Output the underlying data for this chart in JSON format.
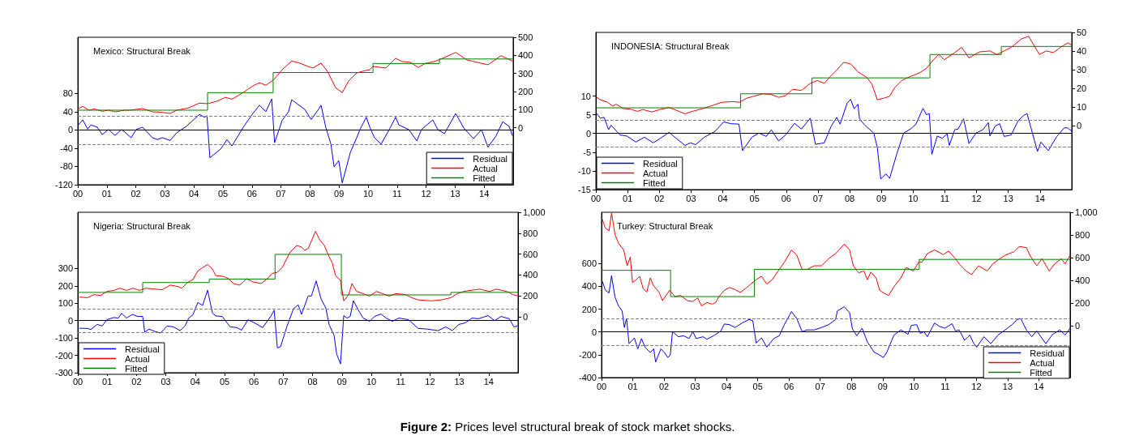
{
  "chart_data": [
    {
      "type": "line",
      "title": "Mexico: Structural Break",
      "legend": "bottom right",
      "marker": "none",
      "xlim": [
        0,
        15
      ],
      "xticks": [
        {
          "value": 0,
          "label": "00"
        },
        {
          "value": 1,
          "label": "01"
        },
        {
          "value": 2,
          "label": "02"
        },
        {
          "value": 3,
          "label": "03"
        },
        {
          "value": 4,
          "label": "04"
        },
        {
          "value": 5,
          "label": "05"
        },
        {
          "value": 6,
          "label": "06"
        },
        {
          "value": 7,
          "label": "07"
        },
        {
          "value": 8,
          "label": "08"
        },
        {
          "value": 9,
          "label": "09"
        },
        10,
        11,
        12,
        13,
        14
      ],
      "ylim": [
        -120,
        203
      ],
      "yticks": [
        -120,
        -80,
        -40,
        0,
        40,
        80
      ],
      "y2lim": [
        -315,
        500
      ],
      "y2ticks": [
        0,
        100,
        200,
        300,
        400,
        500
      ],
      "ref_lines": [
        {
          "axis": "y",
          "value": 0,
          "color": "#000000",
          "line_style": "solid"
        },
        {
          "axis": "y",
          "value": 31,
          "color": "#808080",
          "line_style": "dashed"
        },
        {
          "axis": "y",
          "value": -31,
          "color": "#808080",
          "line_style": "dashed"
        }
      ],
      "series": [
        {
          "name": "Residual",
          "color": "#0000ff",
          "x": [
            0.02,
            0.17,
            0.34,
            0.45,
            0.67,
            0.84,
            1.06,
            1.28,
            1.51,
            1.84,
            2.01,
            2.23,
            2.57,
            2.74,
            2.91,
            3.18,
            3.41,
            3.74,
            4.19,
            4.36,
            4.45,
            4.55,
            4.92,
            5.14,
            5.31,
            5.53,
            5.7,
            6.03,
            6.26,
            6.48,
            6.68,
            6.78,
            7.04,
            7.26,
            7.37,
            7.82,
            8.04,
            8.27,
            8.38,
            8.55,
            8.72,
            8.83,
            8.99,
            9.11,
            9.39,
            9.61,
            9.72,
            9.94,
            10.06,
            10.22,
            10.45,
            10.73,
            10.95,
            11.06,
            11.4,
            11.68,
            11.84,
            12.23,
            12.4,
            12.63,
            13.02,
            13.3,
            13.63,
            13.91,
            14.13,
            14.41,
            14.64,
            14.86,
            14.97
          ],
          "values": [
            11,
            22,
            2,
            11,
            6,
            -10,
            1,
            -12,
            1,
            -17,
            1,
            6,
            -17,
            -21,
            -17,
            -23,
            -6,
            8,
            34,
            28,
            31,
            -61,
            -42,
            -21,
            -35,
            -12,
            6,
            36,
            54,
            40,
            68,
            -28,
            21,
            40,
            66,
            45,
            23,
            43,
            54,
            4,
            -31,
            -81,
            -67,
            -116,
            -49,
            -17,
            1,
            28,
            6,
            -17,
            -31,
            1,
            28,
            11,
            1,
            -24,
            1,
            22,
            1,
            -8,
            36,
            4,
            -19,
            1,
            -38,
            -13,
            18,
            8,
            -12
          ]
        },
        {
          "name": "Actual",
          "color": "#ff0000",
          "axis": "y2",
          "x": [
            0.02,
            0.17,
            0.39,
            0.56,
            0.84,
            1.06,
            1.28,
            1.62,
            1.79,
            2.23,
            2.57,
            2.85,
            3.18,
            3.41,
            3.8,
            4.19,
            4.47,
            4.8,
            5.08,
            5.31,
            5.7,
            6.03,
            6.26,
            6.48,
            6.76,
            7.04,
            7.37,
            7.65,
            7.93,
            8.1,
            8.38,
            8.6,
            8.88,
            9.11,
            9.33,
            9.61,
            9.89,
            10.06,
            10.17,
            10.61,
            10.95,
            11.17,
            11.45,
            11.73,
            11.96,
            12.29,
            12.57,
            13.02,
            13.41,
            13.74,
            14.13,
            14.58,
            14.97
          ],
          "values": [
            106,
            118,
            97,
            104,
            91,
            97,
            88,
            97,
            97,
            106,
            88,
            86,
            79,
            97,
            109,
            136,
            133,
            147,
            168,
            158,
            195,
            231,
            249,
            235,
            267,
            321,
            369,
            357,
            339,
            330,
            357,
            312,
            222,
            194,
            258,
            303,
            315,
            321,
            339,
            330,
            384,
            366,
            362,
            333,
            355,
            366,
            384,
            416,
            375,
            362,
            348,
            398,
            369
          ]
        },
        {
          "name": "Fitted",
          "color": "#008000",
          "axis": "y2",
          "x": [
            0,
            4.47,
            4.47,
            6.73,
            6.73,
            10.17,
            10.17,
            12.46,
            12.46,
            15
          ],
          "values": [
            97,
            97,
            194,
            194,
            305,
            305,
            355,
            355,
            380,
            380
          ]
        }
      ]
    },
    {
      "type": "line",
      "title": "INDONESIA: Structural Break",
      "legend": "bottom left",
      "marker": "none",
      "xlim": [
        0,
        15
      ],
      "xticks": [
        {
          "value": 0,
          "label": "00"
        },
        {
          "value": 1,
          "label": "01"
        },
        {
          "value": 2,
          "label": "02"
        },
        {
          "value": 3,
          "label": "03"
        },
        {
          "value": 4,
          "label": "04"
        },
        {
          "value": 5,
          "label": "05"
        },
        {
          "value": 6,
          "label": "06"
        },
        {
          "value": 7,
          "label": "07"
        },
        {
          "value": 8,
          "label": "08"
        },
        {
          "value": 9,
          "label": "09"
        },
        10,
        11,
        12,
        13,
        14
      ],
      "ylim": [
        -15,
        27
      ],
      "yticks": [
        -15,
        -10,
        -5,
        0,
        5,
        10
      ],
      "y2lim": [
        -34,
        50
      ],
      "y2ticks": [
        0,
        10,
        20,
        30,
        40,
        50
      ],
      "ref_lines": [
        {
          "axis": "y",
          "value": 0,
          "color": "#000000",
          "line_style": "solid"
        },
        {
          "axis": "y",
          "value": 3.5,
          "color": "#808080",
          "line_style": "dashed"
        },
        {
          "axis": "y",
          "value": -3.5,
          "color": "#808080",
          "line_style": "dashed"
        }
      ],
      "series": [
        {
          "name": "Residual",
          "color": "#0000ff",
          "x": [
            0.03,
            0.14,
            0.26,
            0.4,
            0.48,
            0.76,
            0.98,
            1.26,
            1.53,
            1.81,
            2.03,
            2.31,
            2.53,
            2.81,
            2.98,
            3.14,
            3.42,
            3.76,
            4.03,
            4.26,
            4.51,
            4.62,
            4.92,
            5.14,
            5.37,
            5.53,
            5.76,
            5.98,
            6.26,
            6.48,
            6.76,
            6.92,
            7.2,
            7.42,
            7.59,
            7.7,
            7.92,
            8.03,
            8.14,
            8.26,
            8.31,
            8.48,
            8.76,
            8.87,
            8.98,
            9.14,
            9.26,
            9.48,
            9.7,
            9.92,
            10.09,
            10.31,
            10.42,
            10.51,
            10.59,
            10.76,
            10.92,
            11.07,
            11.14,
            11.31,
            11.42,
            11.59,
            11.76,
            11.98,
            12.2,
            12.37,
            12.42,
            12.59,
            12.73,
            12.87,
            13.09,
            13.31,
            13.48,
            13.59,
            13.92,
            14.03,
            14.26,
            14.53,
            14.76,
            14.87,
            15
          ],
          "values": [
            5.3,
            4.1,
            4.3,
            1,
            2.2,
            -0.4,
            -0.7,
            -2.3,
            -1,
            -2.5,
            -1.3,
            0.3,
            -1.3,
            -3.2,
            -2.5,
            -3,
            -1,
            0.6,
            3.1,
            2.6,
            2.5,
            -4.6,
            -1,
            0.1,
            -0.8,
            1,
            -2,
            -0.4,
            2.7,
            1.2,
            4.1,
            -2.9,
            -2.5,
            2,
            4.3,
            2.5,
            8.1,
            9.1,
            6.6,
            7.8,
            3.9,
            2.2,
            0.1,
            -3.7,
            -12.2,
            -10.8,
            -12,
            -5.6,
            0.1,
            1.2,
            2.5,
            6.7,
            5,
            5.3,
            -5.6,
            -0.7,
            -1.3,
            -0.1,
            -3.2,
            1,
            1.2,
            3.9,
            -2.7,
            0.1,
            1,
            2.9,
            -0.7,
            2,
            2.6,
            -0.8,
            -0.4,
            3.4,
            4.8,
            5.3,
            -4.8,
            -2.3,
            -4.6,
            -0.8,
            1.5,
            1.5,
            0.6
          ]
        },
        {
          "name": "Actual",
          "color": "#ff0000",
          "axis": "y2",
          "x": [
            0.03,
            0.14,
            0.37,
            0.53,
            0.64,
            0.87,
            1.09,
            1.31,
            1.48,
            1.76,
            2.03,
            2.31,
            2.53,
            2.81,
            2.98,
            3.31,
            3.64,
            3.98,
            4.31,
            4.53,
            4.76,
            4.98,
            5.26,
            5.53,
            5.76,
            5.98,
            6.2,
            6.48,
            6.76,
            6.98,
            7.2,
            7.37,
            7.59,
            7.81,
            8.03,
            8.26,
            8.53,
            8.7,
            8.87,
            9.09,
            9.26,
            9.42,
            9.64,
            9.92,
            10.2,
            10.42,
            10.64,
            10.81,
            10.98,
            11.31,
            11.53,
            11.76,
            12.09,
            12.42,
            12.64,
            12.87,
            13.09,
            13.42,
            13.64,
            13.98,
            14.2,
            14.42,
            14.64,
            14.87,
            15
          ],
          "values": [
            15.3,
            14,
            12.7,
            10.6,
            11.6,
            9.3,
            9,
            7.8,
            8.8,
            7.5,
            8.8,
            9.9,
            8.4,
            6.5,
            7.5,
            9,
            10.8,
            12.7,
            13,
            12.7,
            14.9,
            15.9,
            17.2,
            16.8,
            15.3,
            16.2,
            19.6,
            19,
            22.8,
            24.3,
            22.8,
            26.1,
            29.9,
            34,
            33.2,
            28.9,
            26.1,
            22.4,
            14,
            14.9,
            15.9,
            20.5,
            24.3,
            26.5,
            28.4,
            30.8,
            35.4,
            38.2,
            35.4,
            39.2,
            42,
            36.4,
            39.6,
            40.1,
            38.2,
            40.1,
            42,
            46.6,
            47.9,
            38.2,
            40.1,
            39.2,
            42,
            44.4,
            43.3
          ]
        },
        {
          "name": "Fitted",
          "color": "#008000",
          "axis": "y2",
          "x": [
            0,
            4.56,
            4.56,
            6.81,
            6.81,
            10.53,
            10.53,
            12.78,
            12.78,
            15
          ],
          "values": [
            9.7,
            9.7,
            17.2,
            17.2,
            25.7,
            25.7,
            38.2,
            38.2,
            42.5,
            42.5
          ]
        }
      ]
    },
    {
      "type": "line",
      "title": "Nigeria: Structural Break",
      "legend": "bottom left",
      "marker": "none",
      "xlim": [
        0,
        15
      ],
      "xticks": [
        {
          "value": 0,
          "label": "00"
        },
        {
          "value": 1,
          "label": "01"
        },
        {
          "value": 2,
          "label": "02"
        },
        {
          "value": 3,
          "label": "03"
        },
        {
          "value": 4,
          "label": "04"
        },
        {
          "value": 5,
          "label": "05"
        },
        {
          "value": 6,
          "label": "06"
        },
        {
          "value": 7,
          "label": "07"
        },
        {
          "value": 8,
          "label": "08"
        },
        {
          "value": 9,
          "label": "09"
        },
        10,
        11,
        12,
        13,
        14
      ],
      "ylim": [
        -300,
        624
      ],
      "yticks": [
        -300,
        -200,
        -100,
        0,
        100,
        200,
        300
      ],
      "y2lim": [
        -536,
        1000
      ],
      "y2ticks": [
        0,
        200,
        400,
        600,
        800,
        {
          "value": 1000,
          "label": "1,000"
        }
      ],
      "ref_lines": [
        {
          "axis": "y",
          "value": 0,
          "color": "#000000",
          "line_style": "solid"
        },
        {
          "axis": "y",
          "value": 66,
          "color": "#808080",
          "line_style": "dashed"
        },
        {
          "axis": "y",
          "value": -66,
          "color": "#808080",
          "line_style": "dashed"
        }
      ],
      "series": [
        {
          "name": "Residual",
          "color": "#0000ff",
          "x": [
            0.06,
            0.33,
            0.44,
            0.66,
            0.83,
            0.99,
            1.22,
            1.38,
            1.49,
            1.66,
            1.86,
            2.04,
            2.21,
            2.28,
            2.43,
            2.65,
            2.82,
            3.04,
            3.26,
            3.48,
            3.65,
            3.78,
            3.92,
            4.09,
            4.25,
            4.42,
            4.59,
            4.7,
            4.92,
            5.19,
            5.41,
            5.58,
            5.8,
            6.02,
            6.3,
            6.57,
            6.69,
            6.8,
            6.91,
            7.13,
            7.35,
            7.51,
            7.62,
            7.85,
            7.96,
            8.12,
            8.29,
            8.45,
            8.56,
            8.73,
            8.82,
            8.95,
            9.06,
            9.17,
            9.28,
            9.39,
            9.56,
            9.72,
            9.94,
            10.11,
            10.33,
            10.5,
            10.72,
            10.94,
            11.27,
            11.6,
            11.93,
            12.27,
            12.54,
            12.76,
            12.98,
            13.2,
            13.43,
            13.65,
            13.98,
            14.2,
            14.42,
            14.7,
            14.86,
            14.97
          ],
          "values": [
            -44,
            -45,
            -51,
            -22,
            -31,
            5,
            18,
            15,
            42,
            15,
            36,
            24,
            24,
            -67,
            -49,
            -64,
            -71,
            -31,
            -36,
            -58,
            -31,
            15,
            33,
            105,
            87,
            175,
            42,
            27,
            24,
            -36,
            -40,
            -55,
            5,
            -13,
            -40,
            24,
            60,
            -158,
            -149,
            -31,
            69,
            91,
            36,
            142,
            142,
            229,
            124,
            73,
            -22,
            -85,
            -193,
            -249,
            29,
            15,
            24,
            115,
            60,
            15,
            -4,
            24,
            38,
            15,
            -4,
            15,
            5,
            -45,
            -49,
            -58,
            -36,
            -58,
            -22,
            -13,
            15,
            11,
            29,
            0,
            24,
            11,
            -36,
            -31
          ]
        },
        {
          "name": "Actual",
          "color": "#ff0000",
          "axis": "y2",
          "x": [
            0.06,
            0.33,
            0.55,
            0.77,
            0.99,
            1.22,
            1.44,
            1.66,
            1.88,
            2.1,
            2.32,
            2.65,
            2.87,
            3.15,
            3.43,
            3.54,
            3.76,
            3.92,
            4.09,
            4.25,
            4.42,
            4.59,
            4.7,
            4.97,
            5.14,
            5.3,
            5.52,
            5.75,
            5.97,
            6.24,
            6.46,
            6.62,
            6.79,
            6.96,
            7.24,
            7.46,
            7.62,
            7.73,
            7.85,
            7.96,
            8.1,
            8.23,
            8.4,
            8.56,
            8.67,
            8.78,
            8.95,
            9.06,
            9.23,
            9.34,
            9.5,
            9.67,
            9.94,
            10.17,
            10.39,
            10.61,
            10.83,
            11.16,
            11.38,
            11.6,
            12.04,
            12.38,
            12.71,
            12.93,
            13.15,
            13.37,
            13.7,
            14.03,
            14.25,
            14.48,
            14.7,
            14.81,
            14.97
          ],
          "values": [
            188,
            182,
            212,
            203,
            242,
            252,
            273,
            252,
            273,
            252,
            273,
            264,
            258,
            303,
            288,
            273,
            333,
            355,
            439,
            470,
            500,
            455,
            394,
            385,
            364,
            318,
            303,
            364,
            333,
            318,
            364,
            415,
            424,
            470,
            621,
            682,
            667,
            636,
            652,
            727,
            818,
            742,
            682,
            576,
            515,
            394,
            348,
            152,
            212,
            318,
            242,
            227,
            197,
            242,
            221,
            197,
            221,
            212,
            182,
            161,
            152,
            161,
            182,
            221,
            242,
            252,
            264,
            242,
            264,
            252,
            233,
            212,
            203
          ]
        },
        {
          "name": "Fitted",
          "color": "#008000",
          "axis": "y2",
          "x": [
            0,
            2.21,
            2.21,
            4.48,
            4.48,
            6.72,
            6.72,
            8.98,
            8.98,
            12.71,
            12.71,
            15
          ],
          "values": [
            233,
            233,
            327,
            327,
            361,
            361,
            597,
            597,
            209,
            209,
            233,
            233
          ]
        }
      ]
    },
    {
      "type": "line",
      "title": "Turkey: Structural Break",
      "legend": "bottom right",
      "marker": "none",
      "annotations": [
        "Figure 2: Prices level structural break of stock market shocks."
      ],
      "xlim": [
        0,
        15
      ],
      "xticks": [
        {
          "value": 0,
          "label": "00"
        },
        {
          "value": 1,
          "label": "01"
        },
        {
          "value": 2,
          "label": "02"
        },
        {
          "value": 3,
          "label": "03"
        },
        {
          "value": 4,
          "label": "04"
        },
        {
          "value": 5,
          "label": "05"
        },
        {
          "value": 6,
          "label": "06"
        },
        {
          "value": 7,
          "label": "07"
        },
        {
          "value": 8,
          "label": "08"
        },
        {
          "value": 9,
          "label": "09"
        },
        10,
        11,
        12,
        13,
        14
      ],
      "ylim": [
        -400,
        1050
      ],
      "yticks": [
        -400,
        -200,
        0,
        200,
        400,
        600
      ],
      "y2lim": [
        -455,
        1000
      ],
      "y2ticks": [
        0,
        200,
        400,
        600,
        800,
        {
          "value": 1000,
          "label": "1,000"
        }
      ],
      "ref_lines": [
        {
          "axis": "y",
          "value": 0,
          "color": "#000000",
          "line_style": "solid"
        },
        {
          "axis": "y",
          "value": 118,
          "color": "#808080",
          "line_style": "dashed"
        },
        {
          "axis": "y",
          "value": -118,
          "color": "#808080",
          "line_style": "dashed"
        }
      ],
      "series": [
        {
          "name": "Residual",
          "color": "#0000ff",
          "x": [
            0.03,
            0.12,
            0.24,
            0.32,
            0.43,
            0.54,
            0.66,
            0.73,
            0.8,
            0.88,
            1.05,
            1.16,
            1.28,
            1.39,
            1.56,
            1.67,
            1.73,
            1.9,
            2.01,
            2.12,
            2.2,
            2.27,
            2.46,
            2.63,
            2.8,
            2.92,
            3.03,
            3.25,
            3.37,
            3.59,
            3.82,
            3.93,
            4.1,
            4.27,
            4.5,
            4.72,
            4.84,
            4.95,
            5.12,
            5.29,
            5.51,
            5.69,
            5.85,
            6.08,
            6.25,
            6.42,
            6.59,
            6.81,
            7.04,
            7.27,
            7.49,
            7.55,
            7.77,
            7.94,
            8.03,
            8.17,
            8.34,
            8.51,
            8.73,
            8.85,
            9.02,
            9.13,
            9.36,
            9.58,
            9.81,
            9.92,
            10.09,
            10.2,
            10.32,
            10.43,
            10.66,
            10.82,
            10.99,
            11.22,
            11.33,
            11.45,
            11.62,
            11.79,
            11.9,
            12.01,
            12.24,
            12.46,
            12.69,
            12.92,
            13.14,
            13.31,
            13.42,
            13.6,
            13.77,
            13.93,
            14.22,
            14.44,
            14.67,
            14.84,
            15
          ],
          "values": [
            442,
            367,
            342,
            494,
            306,
            230,
            185,
            39,
            118,
            -103,
            -52,
            -148,
            -58,
            -133,
            -179,
            -148,
            -264,
            -148,
            -179,
            -224,
            -203,
            3,
            -42,
            -33,
            -58,
            3,
            -58,
            -42,
            -64,
            -33,
            9,
            70,
            64,
            39,
            79,
            109,
            100,
            -97,
            -52,
            -133,
            -58,
            -33,
            64,
            179,
            118,
            3,
            18,
            18,
            39,
            64,
            109,
            185,
            221,
            170,
            27,
            -33,
            33,
            -88,
            -179,
            -194,
            -224,
            -179,
            -27,
            18,
            -21,
            58,
            64,
            -12,
            3,
            -42,
            79,
            48,
            33,
            73,
            9,
            18,
            -73,
            -27,
            -94,
            -133,
            -42,
            -103,
            -27,
            18,
            64,
            109,
            118,
            18,
            -42,
            9,
            -103,
            -21,
            18,
            -27,
            33
          ]
        },
        {
          "name": "Actual",
          "color": "#ff0000",
          "axis": "y2",
          "x": [
            0.03,
            0.12,
            0.24,
            0.32,
            0.43,
            0.54,
            0.71,
            0.82,
            0.92,
            0.99,
            1.11,
            1.22,
            1.33,
            1.45,
            1.56,
            1.67,
            1.84,
            1.95,
            2.18,
            2.35,
            2.52,
            2.75,
            2.92,
            3.08,
            3.2,
            3.37,
            3.54,
            3.65,
            3.76,
            3.93,
            4.1,
            4.27,
            4.44,
            4.61,
            4.78,
            4.95,
            5.12,
            5.29,
            5.46,
            5.69,
            5.85,
            6.08,
            6.25,
            6.42,
            6.59,
            6.81,
            7.04,
            7.27,
            7.49,
            7.6,
            7.77,
            7.94,
            8.06,
            8.23,
            8.4,
            8.51,
            8.62,
            8.79,
            8.9,
            9.07,
            9.19,
            9.36,
            9.58,
            9.75,
            9.98,
            10.15,
            10.26,
            10.43,
            10.66,
            10.94,
            11.11,
            11.33,
            11.45,
            11.67,
            11.84,
            12.07,
            12.35,
            12.52,
            12.75,
            12.92,
            13.2,
            13.37,
            13.6,
            13.71,
            13.93,
            14.1,
            14.33,
            14.5,
            14.72,
            14.84,
            15
          ],
          "values": [
            935,
            862,
            837,
            991,
            806,
            729,
            668,
            529,
            606,
            382,
            406,
            437,
            329,
            298,
            422,
            351,
            298,
            222,
            314,
            258,
            268,
            222,
            215,
            246,
            175,
            206,
            191,
            206,
            258,
            314,
            338,
            320,
            295,
            329,
            369,
            406,
            437,
            369,
            406,
            498,
            560,
            668,
            622,
            498,
            498,
            529,
            529,
            591,
            637,
            668,
            720,
            668,
            529,
            468,
            483,
            406,
            474,
            422,
            314,
            283,
            268,
            345,
            422,
            514,
            483,
            560,
            560,
            637,
            668,
            628,
            658,
            591,
            545,
            483,
            452,
            529,
            483,
            545,
            591,
            622,
            652,
            698,
            689,
            622,
            529,
            591,
            483,
            545,
            591,
            545,
            622
          ]
        },
        {
          "name": "Fitted",
          "color": "#008000",
          "axis": "y2",
          "x": [
            0,
            2.21,
            2.21,
            4.89,
            4.89,
            10.17,
            10.17,
            15
          ],
          "values": [
            489,
            489,
            258,
            258,
            498,
            498,
            585,
            585
          ]
        }
      ]
    }
  ]
}
